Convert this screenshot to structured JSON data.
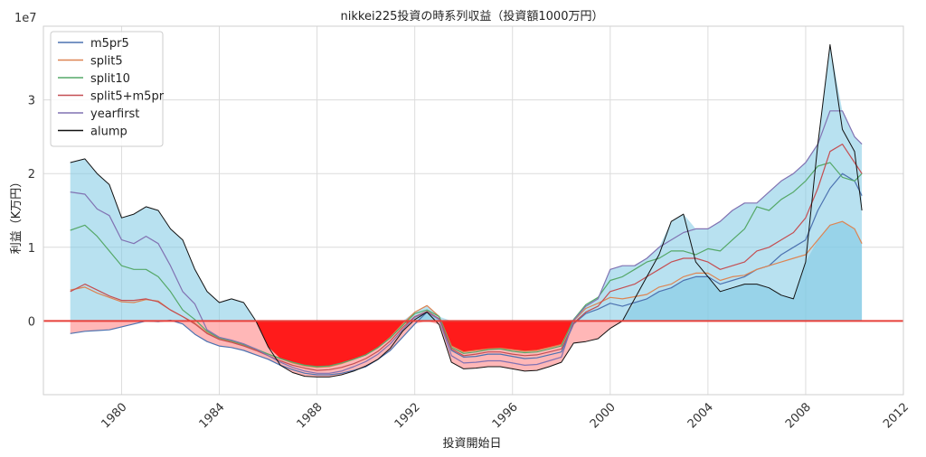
{
  "chart_data": {
    "type": "line",
    "title": "nikkei225投資の時系列収益（投資額1000万円）",
    "xlabel": "投資開始日",
    "ylabel": "利益（K万円）",
    "y_offset_label": "1e7",
    "xlim": [
      1976.8,
      2012.0
    ],
    "ylim": [
      -10000000,
      40000000
    ],
    "x_ticks": [
      1980,
      1984,
      1988,
      1992,
      1996,
      2000,
      2004,
      2008,
      2012
    ],
    "x_tick_labels": [
      "1980",
      "1984",
      "1988",
      "1992",
      "1996",
      "2000",
      "2004",
      "2008",
      "2012"
    ],
    "y_ticks": [
      0,
      10000000,
      20000000,
      30000000
    ],
    "y_tick_labels": [
      "0",
      "1",
      "2",
      "3"
    ],
    "grid": true,
    "legend_position": "top-left",
    "zero_line_color": "#e8403a",
    "fill_positive_color": "#7ec8e3",
    "fill_negative_color": "#ff0000",
    "fill_negative_light_color": "#ffaaaa",
    "x": [
      1977.9,
      1978.5,
      1979.0,
      1979.5,
      1980.0,
      1980.5,
      1981.0,
      1981.5,
      1982.0,
      1982.5,
      1983.0,
      1983.5,
      1984.0,
      1984.5,
      1985.0,
      1985.5,
      1986.0,
      1986.5,
      1987.0,
      1987.5,
      1988.0,
      1988.5,
      1989.0,
      1989.5,
      1990.0,
      1990.5,
      1991.0,
      1991.5,
      1992.0,
      1992.5,
      1993.0,
      1993.5,
      1994.0,
      1994.5,
      1995.0,
      1995.5,
      1996.0,
      1996.5,
      1997.0,
      1997.5,
      1998.0,
      1998.5,
      1999.0,
      1999.5,
      2000.0,
      2000.5,
      2001.0,
      2001.5,
      2002.0,
      2002.5,
      2003.0,
      2003.5,
      2004.0,
      2004.5,
      2005.0,
      2005.5,
      2006.0,
      2006.5,
      2007.0,
      2007.5,
      2008.0,
      2008.5,
      2009.0,
      2009.5,
      2010.0,
      2010.3
    ],
    "series": [
      {
        "name": "m5pr5",
        "color": "#4c72b0",
        "values": [
          -1700000,
          -1400000,
          -1300000,
          -1200000,
          -800000,
          -400000,
          0,
          -100000,
          100000,
          -400000,
          -1800000,
          -2800000,
          -3400000,
          -3600000,
          -4000000,
          -4600000,
          -5200000,
          -6000000,
          -6600000,
          -7100000,
          -7300000,
          -7300000,
          -7100000,
          -6700000,
          -6200000,
          -5200000,
          -4000000,
          -2200000,
          -400000,
          1200000,
          300000,
          -4000000,
          -4900000,
          -4800000,
          -4500000,
          -4500000,
          -4800000,
          -5100000,
          -5000000,
          -4600000,
          -4200000,
          -400000,
          1000000,
          1600000,
          2400000,
          2000000,
          2500000,
          3000000,
          4000000,
          4500000,
          5500000,
          6000000,
          6000000,
          5000000,
          5500000,
          6000000,
          7000000,
          7500000,
          9000000,
          10000000,
          11000000,
          15000000,
          18000000,
          20000000,
          19000000,
          17000000
        ]
      },
      {
        "name": "split5",
        "color": "#dd8452",
        "values": [
          4200000,
          4600000,
          3800000,
          3200000,
          2600000,
          2500000,
          2900000,
          2700000,
          1500000,
          600000,
          -300000,
          -1600000,
          -2400000,
          -2800000,
          -3300000,
          -3900000,
          -4500000,
          -5100000,
          -5700000,
          -6100000,
          -6300000,
          -6200000,
          -5800000,
          -5200000,
          -4600000,
          -3600000,
          -2200000,
          -400000,
          1200000,
          2100000,
          600000,
          -3400000,
          -4200000,
          -4000000,
          -3800000,
          -3700000,
          -3900000,
          -4100000,
          -4000000,
          -3600000,
          -3200000,
          0,
          1700000,
          2400000,
          3200000,
          3000000,
          3300000,
          3600000,
          4600000,
          5000000,
          6000000,
          6500000,
          6500000,
          5500000,
          6000000,
          6200000,
          7000000,
          7500000,
          8000000,
          8500000,
          9000000,
          11000000,
          13000000,
          13500000,
          12500000,
          10500000
        ]
      },
      {
        "name": "split10",
        "color": "#55a868",
        "values": [
          12300000,
          13000000,
          11500000,
          9500000,
          7500000,
          7000000,
          7000000,
          6000000,
          4000000,
          1500000,
          200000,
          -1400000,
          -2300000,
          -2700000,
          -3200000,
          -3800000,
          -4500000,
          -5100000,
          -5600000,
          -6000000,
          -6200000,
          -6100000,
          -5700000,
          -5200000,
          -4600000,
          -3600000,
          -2300000,
          -600000,
          1000000,
          1500000,
          600000,
          -3600000,
          -4400000,
          -4200000,
          -3900000,
          -3800000,
          -4100000,
          -4300000,
          -4200000,
          -3800000,
          -3400000,
          200000,
          2200000,
          3200000,
          5500000,
          6000000,
          7000000,
          8000000,
          8500000,
          9500000,
          9500000,
          9000000,
          9800000,
          9500000,
          11000000,
          12500000,
          15500000,
          15000000,
          16500000,
          17500000,
          19000000,
          21000000,
          21500000,
          19500000,
          19000000,
          20000000
        ]
      },
      {
        "name": "split5+m5pr",
        "color": "#c44e52",
        "values": [
          4000000,
          5000000,
          4200000,
          3400000,
          2800000,
          2800000,
          3000000,
          2600000,
          1500000,
          600000,
          -400000,
          -1700000,
          -2500000,
          -2900000,
          -3400000,
          -4000000,
          -4700000,
          -5400000,
          -6000000,
          -6400000,
          -6700000,
          -6600000,
          -6300000,
          -5800000,
          -5100000,
          -4100000,
          -2700000,
          -900000,
          600000,
          1300000,
          300000,
          -3800000,
          -4700000,
          -4500000,
          -4200000,
          -4200000,
          -4500000,
          -4700000,
          -4600000,
          -4200000,
          -3800000,
          -300000,
          1200000,
          2000000,
          4000000,
          4500000,
          5000000,
          6000000,
          7000000,
          8000000,
          8500000,
          8500000,
          8000000,
          7000000,
          7500000,
          8000000,
          9500000,
          10000000,
          11000000,
          12000000,
          14000000,
          18000000,
          23000000,
          24000000,
          21500000,
          20000000
        ]
      },
      {
        "name": "yearfirst",
        "color": "#8172b2",
        "values": [
          17500000,
          17200000,
          15200000,
          14300000,
          11000000,
          10500000,
          11500000,
          10500000,
          7500000,
          4000000,
          2300000,
          -1200000,
          -2200000,
          -2600000,
          -3100000,
          -3800000,
          -4700000,
          -5600000,
          -6300000,
          -6800000,
          -7100000,
          -7100000,
          -6800000,
          -6200000,
          -5500000,
          -4500000,
          -3100000,
          -1200000,
          500000,
          1200000,
          200000,
          -4700000,
          -5700000,
          -5600000,
          -5400000,
          -5400000,
          -5700000,
          -6000000,
          -5900000,
          -5400000,
          -4900000,
          100000,
          2000000,
          3000000,
          7000000,
          7500000,
          7500000,
          8500000,
          10000000,
          11000000,
          12000000,
          12500000,
          12500000,
          13500000,
          15000000,
          16000000,
          16000000,
          17500000,
          19000000,
          20000000,
          21500000,
          24000000,
          28500000,
          28500000,
          25000000,
          24000000
        ]
      },
      {
        "name": "alump",
        "color": "#111111",
        "values": [
          21500000,
          22000000,
          20000000,
          18500000,
          14000000,
          14500000,
          15500000,
          15000000,
          12500000,
          11000000,
          7000000,
          4000000,
          2500000,
          3000000,
          2500000,
          0,
          -3500000,
          -6000000,
          -7000000,
          -7500000,
          -7600000,
          -7600000,
          -7300000,
          -6800000,
          -6100000,
          -5200000,
          -3700000,
          -1400000,
          200000,
          1200000,
          -500000,
          -5600000,
          -6500000,
          -6400000,
          -6200000,
          -6200000,
          -6500000,
          -6800000,
          -6700000,
          -6200000,
          -5600000,
          -3000000,
          -2800000,
          -2400000,
          -1000000,
          0,
          3000000,
          6000000,
          9000000,
          13500000,
          14500000,
          8000000,
          6000000,
          4000000,
          4500000,
          5000000,
          5000000,
          4500000,
          3500000,
          3000000,
          8000000,
          24000000,
          37500000,
          26000000,
          23000000,
          15000000
        ]
      }
    ]
  }
}
